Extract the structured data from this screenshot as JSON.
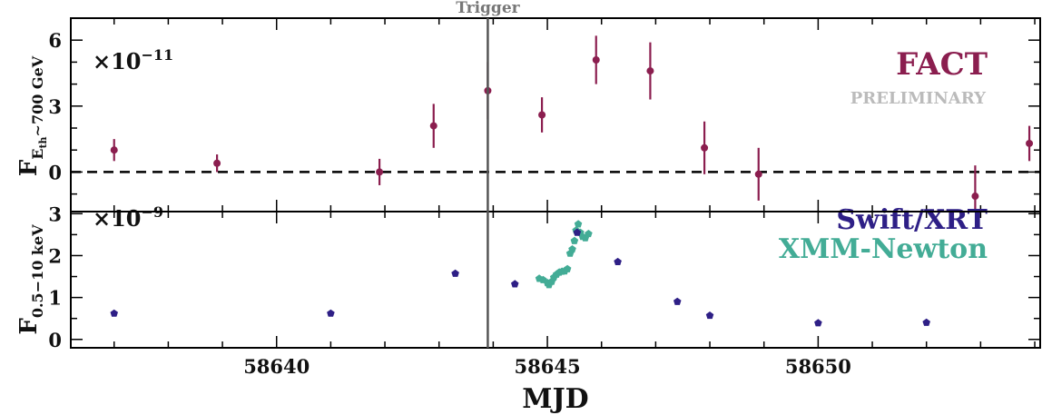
{
  "chart_data": [
    {
      "type": "scatter",
      "panel": "top",
      "multiplier": "×10",
      "multiplier_exp": "−11",
      "ylabel": {
        "main": "F",
        "sub": "E",
        "subsub": "th",
        "tail": "∼700 GeV"
      },
      "ylim": [
        -1.8,
        7.0
      ],
      "yticks": [
        0,
        3,
        6
      ],
      "yticklabels": [
        "0",
        "3",
        "6"
      ],
      "reference_line": {
        "y": 0,
        "style": "dashed"
      },
      "series": [
        {
          "name": "FACT",
          "color": "#8b1e4f",
          "note": "PRELIMINARY",
          "note_color": "#bbbbbb",
          "points": [
            {
              "x": 58637.0,
              "y": 1.0,
              "err": 0.5
            },
            {
              "x": 58638.9,
              "y": 0.4,
              "err": 0.4
            },
            {
              "x": 58641.9,
              "y": 0.0,
              "err": 0.6
            },
            {
              "x": 58642.9,
              "y": 2.1,
              "err": 1.0
            },
            {
              "x": 58643.9,
              "y": 3.7,
              "err": 1.3
            },
            {
              "x": 58644.9,
              "y": 2.6,
              "err": 0.8
            },
            {
              "x": 58645.9,
              "y": 5.1,
              "err": 1.1
            },
            {
              "x": 58646.9,
              "y": 4.6,
              "err": 1.3
            },
            {
              "x": 58647.9,
              "y": 1.1,
              "err": 1.2
            },
            {
              "x": 58648.9,
              "y": -0.1,
              "err": 1.2
            },
            {
              "x": 58652.9,
              "y": -1.1,
              "err": 1.4
            },
            {
              "x": 58653.9,
              "y": 1.3,
              "err": 0.8
            }
          ]
        }
      ]
    },
    {
      "type": "scatter",
      "panel": "bottom",
      "multiplier": "×10",
      "multiplier_exp": "−9",
      "ylabel": {
        "main": "F",
        "sub": "0.5−10 keV"
      },
      "ylim": [
        -0.2,
        3.05
      ],
      "yticks": [
        0,
        1,
        2,
        3
      ],
      "yticklabels": [
        "0",
        "1",
        "2",
        "3"
      ],
      "series": [
        {
          "name": "Swift/XRT",
          "color": "#2e1f86",
          "points": [
            {
              "x": 58637.0,
              "y": 0.62
            },
            {
              "x": 58641.0,
              "y": 0.62
            },
            {
              "x": 58643.3,
              "y": 1.57
            },
            {
              "x": 58644.4,
              "y": 1.32
            },
            {
              "x": 58645.55,
              "y": 2.55
            },
            {
              "x": 58646.3,
              "y": 1.85
            },
            {
              "x": 58647.4,
              "y": 0.9
            },
            {
              "x": 58648.0,
              "y": 0.57
            },
            {
              "x": 58650.0,
              "y": 0.39
            },
            {
              "x": 58652.0,
              "y": 0.4
            }
          ]
        },
        {
          "name": "XMM-Newton",
          "color": "#43ac96",
          "points": [
            {
              "x": 58644.85,
              "y": 1.45
            },
            {
              "x": 58644.92,
              "y": 1.42
            },
            {
              "x": 58645.0,
              "y": 1.35
            },
            {
              "x": 58645.03,
              "y": 1.3
            },
            {
              "x": 58645.08,
              "y": 1.38
            },
            {
              "x": 58645.12,
              "y": 1.48
            },
            {
              "x": 58645.17,
              "y": 1.55
            },
            {
              "x": 58645.22,
              "y": 1.6
            },
            {
              "x": 58645.27,
              "y": 1.62
            },
            {
              "x": 58645.32,
              "y": 1.63
            },
            {
              "x": 58645.37,
              "y": 1.68
            },
            {
              "x": 58645.42,
              "y": 2.05
            },
            {
              "x": 58645.46,
              "y": 2.15
            },
            {
              "x": 58645.5,
              "y": 2.35
            },
            {
              "x": 58645.53,
              "y": 2.6
            },
            {
              "x": 58645.57,
              "y": 2.75
            },
            {
              "x": 58645.61,
              "y": 2.55
            },
            {
              "x": 58645.65,
              "y": 2.45
            },
            {
              "x": 58645.7,
              "y": 2.42
            },
            {
              "x": 58645.76,
              "y": 2.52
            }
          ]
        }
      ]
    }
  ],
  "shared": {
    "xlabel": "MJD",
    "xlim": [
      58636.2,
      58654.1
    ],
    "xticks": [
      58640,
      58645,
      58650
    ],
    "xticklabels": [
      "58640",
      "58645",
      "58650"
    ],
    "trigger": {
      "x": 58643.9,
      "label": "Trigger",
      "color": "#555555",
      "label_color": "#777777"
    }
  }
}
